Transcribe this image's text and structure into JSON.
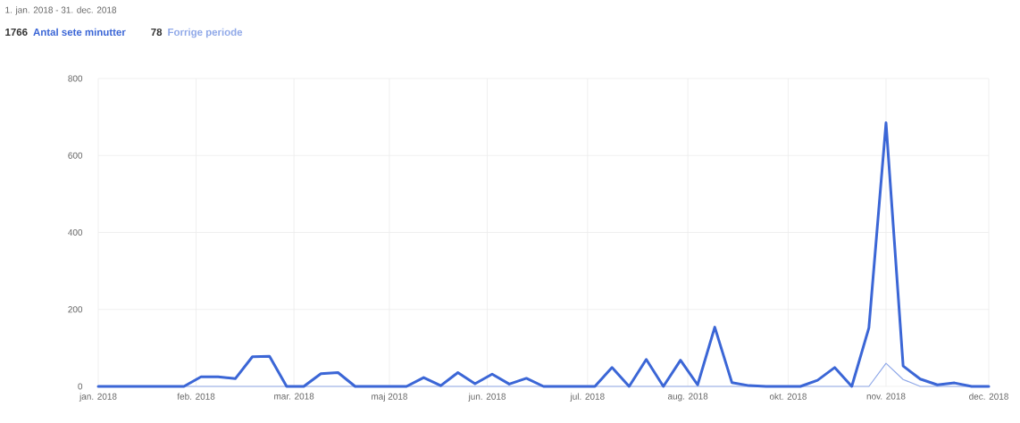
{
  "chart_data": {
    "type": "line",
    "title": "1. jan. 2018 - 31. dec. 2018",
    "annotations": [
      "1766",
      "78"
    ],
    "x": [
      "2018-01-01",
      "2018-01-08",
      "2018-01-15",
      "2018-01-22",
      "2018-01-29",
      "2018-02-05",
      "2018-02-12",
      "2018-02-19",
      "2018-02-26",
      "2018-03-05",
      "2018-03-12",
      "2018-03-19",
      "2018-03-26",
      "2018-04-02",
      "2018-04-09",
      "2018-04-16",
      "2018-04-23",
      "2018-04-30",
      "2018-05-07",
      "2018-05-14",
      "2018-05-21",
      "2018-05-28",
      "2018-06-04",
      "2018-06-11",
      "2018-06-18",
      "2018-06-25",
      "2018-07-02",
      "2018-07-09",
      "2018-07-16",
      "2018-07-23",
      "2018-07-30",
      "2018-08-06",
      "2018-08-13",
      "2018-08-20",
      "2018-08-27",
      "2018-09-03",
      "2018-09-10",
      "2018-09-17",
      "2018-09-24",
      "2018-10-01",
      "2018-10-08",
      "2018-10-15",
      "2018-10-22",
      "2018-10-29",
      "2018-11-05",
      "2018-11-12",
      "2018-11-19",
      "2018-11-26",
      "2018-12-03",
      "2018-12-10",
      "2018-12-17",
      "2018-12-24",
      "2018-12-31"
    ],
    "series": [
      {
        "name": "Antal sete minutter",
        "color": "#3b66d6",
        "values": [
          0,
          0,
          0,
          0,
          0,
          0,
          25,
          25,
          20,
          77,
          78,
          0,
          0,
          33,
          36,
          0,
          0,
          0,
          0,
          23,
          2,
          36,
          7,
          32,
          6,
          21,
          0,
          0,
          0,
          0,
          49,
          0,
          70,
          0,
          68,
          4,
          154,
          10,
          2,
          0,
          0,
          0,
          16,
          49,
          0,
          152,
          685,
          53,
          19,
          4,
          9,
          0,
          0
        ]
      },
      {
        "name": "Forrige periode",
        "color": "#8fa8e8",
        "values": [
          0,
          0,
          0,
          0,
          0,
          0,
          0,
          0,
          0,
          0,
          0,
          0,
          0,
          0,
          0,
          0,
          0,
          0,
          0,
          0,
          0,
          0,
          0,
          0,
          0,
          0,
          0,
          0,
          0,
          0,
          0,
          0,
          0,
          0,
          0,
          0,
          0,
          0,
          0,
          0,
          0,
          0,
          0,
          0,
          0,
          0,
          60,
          18,
          0,
          0,
          0,
          0,
          0
        ]
      }
    ],
    "xlim": [
      "2018-01-01",
      "2018-12-31"
    ],
    "xticks": [
      {
        "value": "2018-01-01",
        "label": "jan. 2018"
      },
      {
        "value": "2018-02-10",
        "label": "feb. 2018"
      },
      {
        "value": "2018-03-22",
        "label": "mar. 2018"
      },
      {
        "value": "2018-04-30",
        "label": "maj 2018"
      },
      {
        "value": "2018-06-09",
        "label": "jun. 2018"
      },
      {
        "value": "2018-07-20",
        "label": "jul. 2018"
      },
      {
        "value": "2018-08-30",
        "label": "aug. 2018"
      },
      {
        "value": "2018-10-10",
        "label": "okt. 2018"
      },
      {
        "value": "2018-11-19",
        "label": "nov. 2018"
      },
      {
        "value": "2018-12-31",
        "label": "dec. 2018"
      }
    ],
    "ylim": [
      0,
      800
    ],
    "yticks": [
      0,
      200,
      400,
      600,
      800
    ],
    "grid": true,
    "legend": "top left",
    "marker": "none",
    "line_style": "solid"
  }
}
